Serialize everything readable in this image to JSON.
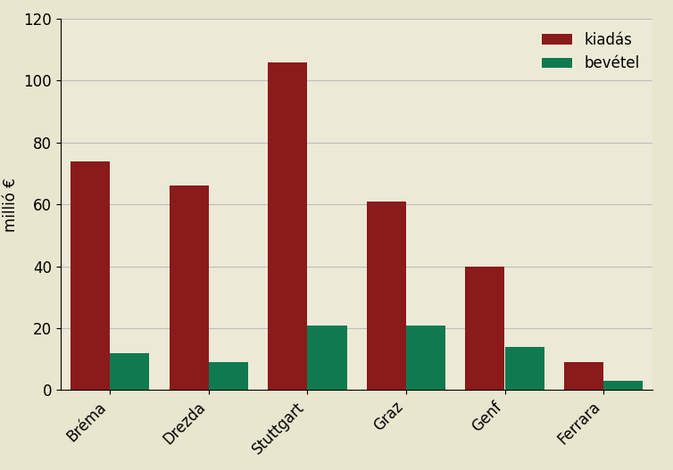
{
  "chart_data": {
    "type": "bar",
    "y_label": "millió €",
    "categories": [
      "Bréma",
      "Drezda",
      "Stuttgart",
      "Graz",
      "Genf",
      "Ferrara"
    ],
    "series": [
      {
        "name": "kiadás",
        "color": "#8b1a1a",
        "values": [
          74,
          66,
          106,
          61,
          40,
          9
        ]
      },
      {
        "name": "bevétel",
        "color": "#0f7a50",
        "values": [
          12,
          9,
          21,
          21,
          14,
          3
        ]
      }
    ],
    "ylim": [
      0,
      120
    ],
    "yticks": [
      0,
      20,
      40,
      60,
      80,
      100,
      120
    ],
    "grid": true,
    "legend": "upper right"
  }
}
